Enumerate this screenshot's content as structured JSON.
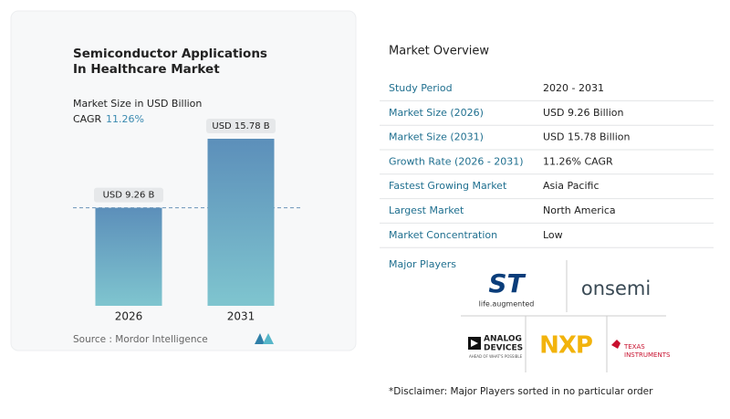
{
  "chart_data": {
    "type": "bar",
    "title": "Semiconductor Applications In Healthcare Market",
    "subtitle": "Market Size in USD Billion",
    "cagr_label": "CAGR",
    "cagr": "11.26%",
    "categories": [
      "2026",
      "2031"
    ],
    "values": [
      9.26,
      15.78
    ],
    "value_labels": [
      "USD 9.26 B",
      "USD 15.78 B"
    ],
    "source": "Source :  Mordor Intelligence"
  },
  "overview": {
    "title": "Market Overview",
    "rows": [
      [
        "Study Period",
        "2020 - 2031"
      ],
      [
        "Market Size (2026)",
        "USD 9.26 Billion"
      ],
      [
        "Market Size (2031)",
        "USD 15.78 Billion"
      ],
      [
        "Growth Rate (2026 - 2031)",
        "11.26% CAGR"
      ],
      [
        "Fastest Growing Market",
        "Asia Pacific"
      ],
      [
        "Largest Market",
        "North America"
      ],
      [
        "Market Concentration",
        "Low"
      ]
    ]
  },
  "players": {
    "title": "Major Players",
    "logos": [
      "ST",
      "life.augmented",
      "onsemi",
      "ANALOG",
      "DEVICES",
      "AHEAD OF WHAT'S POSSIBLE",
      "NXP",
      "TEXAS",
      "INSTRUMENTS"
    ]
  },
  "disclaimer": "*Disclaimer: Major Players sorted in no particular order"
}
